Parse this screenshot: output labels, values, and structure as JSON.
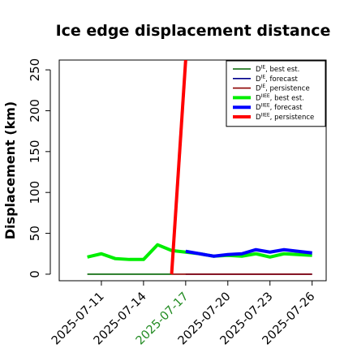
{
  "chart_data": {
    "type": "line",
    "title": "Ice edge displacement distance",
    "xlabel": "",
    "ylabel": "Displacement (km)",
    "x_tick_labels": [
      "2025-07-11",
      "2025-07-14",
      "2025-07-17",
      "2025-07-20",
      "2025-07-23",
      "2025-07-26"
    ],
    "highlighted_tick": "2025-07-17",
    "highlight_color": "#228b22",
    "xlim": [
      "2025-07-08",
      "2025-07-27"
    ],
    "ylim": [
      -8,
      262
    ],
    "y_ticks": [
      0,
      50,
      100,
      150,
      200,
      250
    ],
    "grid": false,
    "legend_position": "top-right",
    "series": [
      {
        "name": "D^IE, best est.",
        "legend_base": "D",
        "legend_sup": "IE",
        "legend_rest": ", best est.",
        "color": "#006400",
        "width": 1.6,
        "x": [
          "2025-07-10",
          "2025-07-11",
          "2025-07-12",
          "2025-07-13",
          "2025-07-14",
          "2025-07-15",
          "2025-07-16"
        ],
        "y": [
          0,
          0,
          0,
          0,
          0,
          0,
          0
        ]
      },
      {
        "name": "D^IE, forecast",
        "legend_base": "D",
        "legend_sup": "IE",
        "legend_rest": ", forecast",
        "color": "#00008b",
        "width": 1.6,
        "x": [
          "2025-07-17",
          "2025-07-18",
          "2025-07-19",
          "2025-07-20",
          "2025-07-21",
          "2025-07-22",
          "2025-07-23",
          "2025-07-24",
          "2025-07-25",
          "2025-07-26"
        ],
        "y": [
          0,
          0,
          0,
          0,
          0,
          0,
          0,
          0,
          0,
          0
        ]
      },
      {
        "name": "D^IE, persistence",
        "legend_base": "D",
        "legend_sup": "IE",
        "legend_rest": ", persistence",
        "color": "#8b0000",
        "width": 1.6,
        "x": [
          "2025-07-16",
          "2025-07-17",
          "2025-07-18",
          "2025-07-19",
          "2025-07-20",
          "2025-07-21",
          "2025-07-22",
          "2025-07-23",
          "2025-07-24",
          "2025-07-25",
          "2025-07-26"
        ],
        "y": [
          0,
          0,
          0,
          0,
          0,
          0,
          0,
          0,
          0,
          0,
          0
        ]
      },
      {
        "name": "D^IIEE, best est.",
        "legend_base": "D",
        "legend_sup": "IIEE",
        "legend_rest": ", best est.",
        "color": "#00ee00",
        "width": 4,
        "x": [
          "2025-07-10",
          "2025-07-11",
          "2025-07-12",
          "2025-07-13",
          "2025-07-14",
          "2025-07-15",
          "2025-07-16",
          "2025-07-17",
          "2025-07-18",
          "2025-07-19",
          "2025-07-20",
          "2025-07-21",
          "2025-07-22",
          "2025-07-23",
          "2025-07-24",
          "2025-07-25",
          "2025-07-26"
        ],
        "y": [
          21,
          25,
          19,
          18,
          18,
          36,
          29,
          27,
          25,
          22,
          23,
          22,
          25,
          21,
          25,
          24,
          23
        ]
      },
      {
        "name": "D^IIEE, forecast",
        "legend_base": "D",
        "legend_sup": "IIEE",
        "legend_rest": ", forecast",
        "color": "#0000ff",
        "width": 4,
        "x": [
          "2025-07-17",
          "2025-07-18",
          "2025-07-19",
          "2025-07-20",
          "2025-07-21",
          "2025-07-22",
          "2025-07-23",
          "2025-07-24",
          "2025-07-25",
          "2025-07-26"
        ],
        "y": [
          28,
          25,
          22,
          24,
          25,
          30,
          27,
          30,
          28,
          26
        ]
      },
      {
        "name": "D^IIEE, persistence",
        "legend_base": "D",
        "legend_sup": "IIEE",
        "legend_rest": ", persistence",
        "color": "#ff0000",
        "width": 4,
        "x": [
          "2025-07-16",
          "2025-07-17"
        ],
        "y": [
          0,
          262
        ]
      }
    ]
  }
}
